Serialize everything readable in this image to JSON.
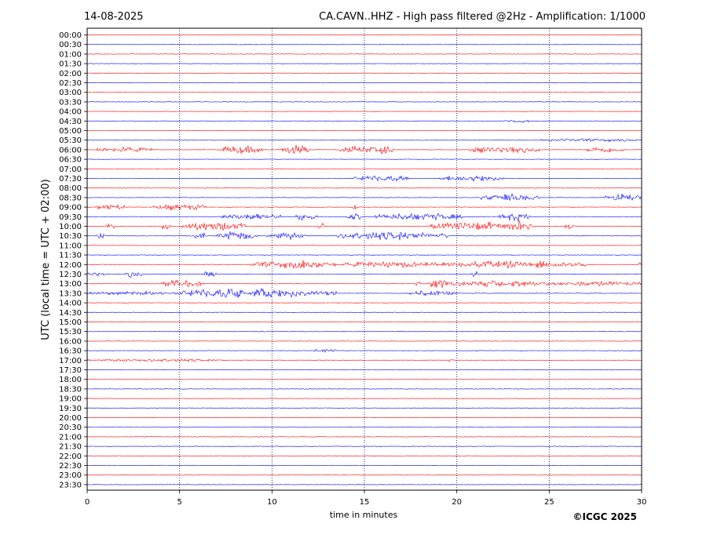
{
  "header": {
    "date": "14-08-2025",
    "title": "CA.CAVN..HHZ - High pass filtered @2Hz - Amplification: 1/1000"
  },
  "copyright": "©ICGC 2025",
  "colors": {
    "odd_trace": "#ff0000",
    "even_trace": "#0000ff",
    "grid": "#000080"
  },
  "chart_data": {
    "type": "line",
    "xlabel": "time in minutes",
    "ylabel": "UTC (local time = UTC + 02:00)",
    "xlim": [
      0,
      30
    ],
    "x_ticks": [
      "0",
      "5",
      "10",
      "15",
      "20",
      "25",
      "30"
    ],
    "grid": "vertical dotted lines at 5-minute intervals",
    "rows": [
      "00:00",
      "00:30",
      "01:00",
      "01:30",
      "02:00",
      "02:30",
      "03:00",
      "03:30",
      "04:00",
      "04:30",
      "05:00",
      "05:30",
      "06:00",
      "06:30",
      "07:00",
      "07:30",
      "08:00",
      "08:30",
      "09:00",
      "09:30",
      "10:00",
      "10:30",
      "11:00",
      "11:30",
      "12:00",
      "12:30",
      "13:00",
      "13:30",
      "14:00",
      "14:30",
      "15:00",
      "15:30",
      "16:00",
      "16:30",
      "17:00",
      "17:30",
      "18:00",
      "18:30",
      "19:00",
      "19:30",
      "20:00",
      "20:30",
      "21:00",
      "21:30",
      "22:00",
      "22:30",
      "23:00",
      "23:30"
    ],
    "bursts": [
      {
        "row": "06:00",
        "segments": [
          [
            0.5,
            3.5,
            0.25
          ],
          [
            7.3,
            9.5,
            0.4
          ],
          [
            10.5,
            12.0,
            0.5
          ],
          [
            13.6,
            16.0,
            0.35
          ],
          [
            15.8,
            16.6,
            0.6
          ],
          [
            20.5,
            24.5,
            0.35
          ],
          [
            27.0,
            29.0,
            0.3
          ]
        ]
      },
      {
        "row": "07:30",
        "segments": [
          [
            14.4,
            17.5,
            0.3
          ],
          [
            19.0,
            22.6,
            0.3
          ]
        ]
      },
      {
        "row": "08:30",
        "segments": [
          [
            21.3,
            24.5,
            0.35
          ],
          [
            28.0,
            30.0,
            0.35
          ]
        ]
      },
      {
        "row": "09:00",
        "segments": [
          [
            0.5,
            2.0,
            0.3
          ],
          [
            3.5,
            6.5,
            0.3
          ],
          [
            14.4,
            14.6,
            0.4
          ]
        ]
      },
      {
        "row": "09:30",
        "segments": [
          [
            7.3,
            10.5,
            0.35
          ],
          [
            11.3,
            12.5,
            0.4
          ],
          [
            14.0,
            14.8,
            0.35
          ],
          [
            15.5,
            20.5,
            0.35
          ],
          [
            22.3,
            24.0,
            0.4
          ]
        ]
      },
      {
        "row": "10:00",
        "segments": [
          [
            1.0,
            1.6,
            0.4
          ],
          [
            4.0,
            4.5,
            0.4
          ],
          [
            5.1,
            8.6,
            0.45
          ],
          [
            12.5,
            12.8,
            0.4
          ],
          [
            18.5,
            24.3,
            0.4
          ],
          [
            23.0,
            24.0,
            0.55
          ],
          [
            25.8,
            26.4,
            0.3
          ]
        ]
      },
      {
        "row": "10:30",
        "segments": [
          [
            0.5,
            0.9,
            0.35
          ],
          [
            5.8,
            6.5,
            0.45
          ],
          [
            7.0,
            9.2,
            0.4
          ],
          [
            9.7,
            11.8,
            0.35
          ],
          [
            13.5,
            19.5,
            0.4
          ]
        ]
      },
      {
        "row": "12:00",
        "segments": [
          [
            8.8,
            13.5,
            0.35
          ],
          [
            11.0,
            12.2,
            0.5
          ],
          [
            13.8,
            19.0,
            0.3
          ],
          [
            19.2,
            27.0,
            0.35
          ],
          [
            29.8,
            30.0,
            0.3
          ]
        ]
      },
      {
        "row": "12:30",
        "segments": [
          [
            0.0,
            1.0,
            0.25
          ],
          [
            2.0,
            3.0,
            0.35
          ],
          [
            6.3,
            7.0,
            0.3
          ],
          [
            20.8,
            21.1,
            0.4
          ]
        ]
      },
      {
        "row": "13:00",
        "segments": [
          [
            4.0,
            6.3,
            0.35
          ],
          [
            17.8,
            18.0,
            0.3
          ],
          [
            18.5,
            19.5,
            0.6
          ],
          [
            19.5,
            25.0,
            0.3
          ],
          [
            25.0,
            30.0,
            0.25
          ]
        ]
      },
      {
        "row": "13:30",
        "segments": [
          [
            0.0,
            5.0,
            0.2
          ],
          [
            5.0,
            8.5,
            0.45
          ],
          [
            7.5,
            8.5,
            0.6
          ],
          [
            8.7,
            13.5,
            0.4
          ],
          [
            9.0,
            10.0,
            0.55
          ],
          [
            17.3,
            20.0,
            0.25
          ]
        ]
      },
      {
        "row": "16:30",
        "segments": [
          [
            12.3,
            13.5,
            0.2
          ]
        ]
      },
      {
        "row": "17:00",
        "segments": [
          [
            0.0,
            7.5,
            0.15
          ],
          [
            19.5,
            19.8,
            0.25
          ]
        ]
      },
      {
        "row": "05:30",
        "segments": [
          [
            24.5,
            30.0,
            0.15
          ]
        ]
      },
      {
        "row": "04:30",
        "segments": [
          [
            22.5,
            24.0,
            0.15
          ]
        ]
      }
    ]
  }
}
